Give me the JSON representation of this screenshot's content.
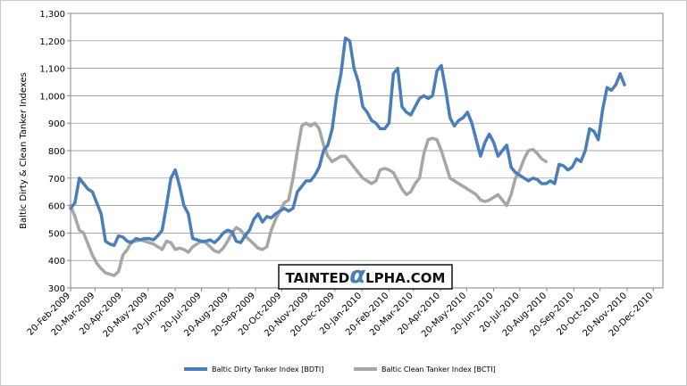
{
  "chart_data": {
    "type": "line",
    "ylabel": "Baltic Dirty & Clean Tanker Indexes",
    "xlabel": "",
    "ylim": [
      300,
      1300
    ],
    "yticks": [
      "300",
      "400",
      "500",
      "600",
      "700",
      "800",
      "900",
      "1,000",
      "1,100",
      "1,200",
      "1,300"
    ],
    "ytick_values": [
      300,
      400,
      500,
      600,
      700,
      800,
      900,
      1000,
      1100,
      1200,
      1300
    ],
    "xlim": [
      "2009-02-20",
      "2010-12-31"
    ],
    "xticks": [
      "20-Feb-2009",
      "20-Mar-2009",
      "20-Apr-2009",
      "20-May-2009",
      "20-Jun-2009",
      "20-Jul-2009",
      "20-Aug-2009",
      "20-Sep-2009",
      "20-Oct-2009",
      "20-Nov-2009",
      "20-Dec-2009",
      "20-Jan-2010",
      "20-Feb-2010",
      "20-Mar-2010",
      "20-Apr-2010",
      "20-May-2010",
      "20-Jun-2010",
      "20-Jul-2010",
      "20-Aug-2010",
      "20-Sep-2010",
      "20-Oct-2010",
      "20-Nov-2010",
      "20-Dec-2010"
    ],
    "xtick_dates": [
      "2009-02-20",
      "2009-03-20",
      "2009-04-20",
      "2009-05-20",
      "2009-06-20",
      "2009-07-20",
      "2009-08-20",
      "2009-09-20",
      "2009-10-20",
      "2009-11-20",
      "2009-12-20",
      "2010-01-20",
      "2010-02-20",
      "2010-03-20",
      "2010-04-20",
      "2010-05-20",
      "2010-06-20",
      "2010-07-20",
      "2010-08-20",
      "2010-09-20",
      "2010-10-20",
      "2010-11-20",
      "2010-12-20"
    ],
    "grid": true,
    "legend_position": "bottom",
    "series": [
      {
        "name": "Baltic Dirty Tanker Index [BDTI]",
        "color": "#4a7ebb",
        "points": [
          [
            "2009-02-20",
            590
          ],
          [
            "2009-02-25",
            610
          ],
          [
            "2009-03-02",
            700
          ],
          [
            "2009-03-07",
            680
          ],
          [
            "2009-03-12",
            660
          ],
          [
            "2009-03-17",
            650
          ],
          [
            "2009-03-22",
            610
          ],
          [
            "2009-03-27",
            570
          ],
          [
            "2009-04-01",
            470
          ],
          [
            "2009-04-06",
            460
          ],
          [
            "2009-04-11",
            455
          ],
          [
            "2009-04-16",
            490
          ],
          [
            "2009-04-21",
            485
          ],
          [
            "2009-04-26",
            470
          ],
          [
            "2009-05-01",
            465
          ],
          [
            "2009-05-06",
            480
          ],
          [
            "2009-05-11",
            475
          ],
          [
            "2009-05-16",
            480
          ],
          [
            "2009-05-21",
            480
          ],
          [
            "2009-05-26",
            475
          ],
          [
            "2009-05-31",
            490
          ],
          [
            "2009-06-05",
            510
          ],
          [
            "2009-06-10",
            600
          ],
          [
            "2009-06-15",
            700
          ],
          [
            "2009-06-20",
            730
          ],
          [
            "2009-06-25",
            670
          ],
          [
            "2009-06-30",
            600
          ],
          [
            "2009-07-05",
            570
          ],
          [
            "2009-07-10",
            480
          ],
          [
            "2009-07-15",
            475
          ],
          [
            "2009-07-20",
            470
          ],
          [
            "2009-07-25",
            470
          ],
          [
            "2009-07-30",
            475
          ],
          [
            "2009-08-04",
            465
          ],
          [
            "2009-08-09",
            480
          ],
          [
            "2009-08-14",
            500
          ],
          [
            "2009-08-19",
            510
          ],
          [
            "2009-08-24",
            505
          ],
          [
            "2009-08-29",
            470
          ],
          [
            "2009-09-03",
            465
          ],
          [
            "2009-09-08",
            490
          ],
          [
            "2009-09-13",
            510
          ],
          [
            "2009-09-18",
            550
          ],
          [
            "2009-09-23",
            570
          ],
          [
            "2009-09-28",
            540
          ],
          [
            "2009-10-03",
            560
          ],
          [
            "2009-10-08",
            555
          ],
          [
            "2009-10-13",
            570
          ],
          [
            "2009-10-18",
            580
          ],
          [
            "2009-10-23",
            590
          ],
          [
            "2009-10-28",
            580
          ],
          [
            "2009-11-02",
            590
          ],
          [
            "2009-11-07",
            650
          ],
          [
            "2009-11-12",
            670
          ],
          [
            "2009-11-17",
            690
          ],
          [
            "2009-11-22",
            690
          ],
          [
            "2009-11-27",
            710
          ],
          [
            "2009-12-02",
            740
          ],
          [
            "2009-12-07",
            800
          ],
          [
            "2009-12-12",
            820
          ],
          [
            "2009-12-17",
            880
          ],
          [
            "2009-12-22",
            1000
          ],
          [
            "2009-12-27",
            1080
          ],
          [
            "2010-01-01",
            1210
          ],
          [
            "2010-01-06",
            1200
          ],
          [
            "2010-01-11",
            1100
          ],
          [
            "2010-01-16",
            1050
          ],
          [
            "2010-01-21",
            960
          ],
          [
            "2010-01-26",
            940
          ],
          [
            "2010-01-31",
            910
          ],
          [
            "2010-02-05",
            900
          ],
          [
            "2010-02-10",
            880
          ],
          [
            "2010-02-15",
            880
          ],
          [
            "2010-02-20",
            900
          ],
          [
            "2010-02-25",
            1080
          ],
          [
            "2010-03-02",
            1100
          ],
          [
            "2010-03-07",
            960
          ],
          [
            "2010-03-12",
            940
          ],
          [
            "2010-03-17",
            930
          ],
          [
            "2010-03-22",
            960
          ],
          [
            "2010-03-27",
            990
          ],
          [
            "2010-04-01",
            1000
          ],
          [
            "2010-04-06",
            990
          ],
          [
            "2010-04-11",
            1000
          ],
          [
            "2010-04-16",
            1090
          ],
          [
            "2010-04-21",
            1110
          ],
          [
            "2010-04-26",
            1020
          ],
          [
            "2010-05-01",
            920
          ],
          [
            "2010-05-06",
            890
          ],
          [
            "2010-05-11",
            910
          ],
          [
            "2010-05-16",
            920
          ],
          [
            "2010-05-21",
            940
          ],
          [
            "2010-05-26",
            900
          ],
          [
            "2010-05-31",
            840
          ],
          [
            "2010-06-05",
            780
          ],
          [
            "2010-06-10",
            830
          ],
          [
            "2010-06-15",
            860
          ],
          [
            "2010-06-20",
            830
          ],
          [
            "2010-06-25",
            780
          ],
          [
            "2010-06-30",
            800
          ],
          [
            "2010-07-05",
            820
          ],
          [
            "2010-07-10",
            740
          ],
          [
            "2010-07-15",
            720
          ],
          [
            "2010-07-20",
            710
          ],
          [
            "2010-07-25",
            700
          ],
          [
            "2010-07-30",
            690
          ],
          [
            "2010-08-04",
            700
          ],
          [
            "2010-08-09",
            695
          ],
          [
            "2010-08-14",
            680
          ],
          [
            "2010-08-19",
            680
          ],
          [
            "2010-08-24",
            690
          ],
          [
            "2010-08-29",
            680
          ],
          [
            "2010-09-03",
            750
          ],
          [
            "2010-09-08",
            745
          ],
          [
            "2010-09-13",
            730
          ],
          [
            "2010-09-18",
            740
          ],
          [
            "2010-09-23",
            770
          ],
          [
            "2010-09-28",
            760
          ],
          [
            "2010-10-03",
            800
          ],
          [
            "2010-10-08",
            880
          ],
          [
            "2010-10-13",
            870
          ],
          [
            "2010-10-18",
            840
          ],
          [
            "2010-10-23",
            950
          ],
          [
            "2010-10-28",
            1030
          ],
          [
            "2010-11-02",
            1020
          ],
          [
            "2010-11-07",
            1040
          ],
          [
            "2010-11-12",
            1080
          ],
          [
            "2010-11-17",
            1040
          ]
        ]
      },
      {
        "name": "Baltic Clean Tanker Index [BCTI]",
        "color": "#a6a6a6",
        "points": [
          [
            "2009-02-20",
            600
          ],
          [
            "2009-02-25",
            560
          ],
          [
            "2009-03-02",
            510
          ],
          [
            "2009-03-07",
            500
          ],
          [
            "2009-03-12",
            460
          ],
          [
            "2009-03-17",
            420
          ],
          [
            "2009-03-22",
            390
          ],
          [
            "2009-03-27",
            370
          ],
          [
            "2009-04-01",
            355
          ],
          [
            "2009-04-06",
            350
          ],
          [
            "2009-04-11",
            345
          ],
          [
            "2009-04-16",
            360
          ],
          [
            "2009-04-21",
            420
          ],
          [
            "2009-04-26",
            440
          ],
          [
            "2009-05-01",
            470
          ],
          [
            "2009-05-06",
            470
          ],
          [
            "2009-05-11",
            475
          ],
          [
            "2009-05-16",
            470
          ],
          [
            "2009-05-21",
            465
          ],
          [
            "2009-05-26",
            460
          ],
          [
            "2009-05-31",
            450
          ],
          [
            "2009-06-05",
            440
          ],
          [
            "2009-06-10",
            470
          ],
          [
            "2009-06-15",
            465
          ],
          [
            "2009-06-20",
            440
          ],
          [
            "2009-06-25",
            445
          ],
          [
            "2009-06-30",
            440
          ],
          [
            "2009-07-05",
            430
          ],
          [
            "2009-07-10",
            450
          ],
          [
            "2009-07-15",
            460
          ],
          [
            "2009-07-20",
            470
          ],
          [
            "2009-07-25",
            465
          ],
          [
            "2009-07-30",
            450
          ],
          [
            "2009-08-04",
            435
          ],
          [
            "2009-08-09",
            430
          ],
          [
            "2009-08-14",
            445
          ],
          [
            "2009-08-19",
            470
          ],
          [
            "2009-08-24",
            500
          ],
          [
            "2009-08-29",
            520
          ],
          [
            "2009-09-03",
            510
          ],
          [
            "2009-09-08",
            490
          ],
          [
            "2009-09-13",
            475
          ],
          [
            "2009-09-18",
            460
          ],
          [
            "2009-09-23",
            445
          ],
          [
            "2009-09-28",
            440
          ],
          [
            "2009-10-03",
            450
          ],
          [
            "2009-10-08",
            510
          ],
          [
            "2009-10-13",
            550
          ],
          [
            "2009-10-18",
            580
          ],
          [
            "2009-10-23",
            610
          ],
          [
            "2009-10-28",
            620
          ],
          [
            "2009-11-02",
            700
          ],
          [
            "2009-11-07",
            800
          ],
          [
            "2009-11-12",
            890
          ],
          [
            "2009-11-17",
            900
          ],
          [
            "2009-11-22",
            890
          ],
          [
            "2009-11-27",
            900
          ],
          [
            "2009-12-02",
            880
          ],
          [
            "2009-12-07",
            820
          ],
          [
            "2009-12-12",
            780
          ],
          [
            "2009-12-17",
            760
          ],
          [
            "2009-12-22",
            770
          ],
          [
            "2009-12-27",
            780
          ],
          [
            "2010-01-01",
            780
          ],
          [
            "2010-01-06",
            760
          ],
          [
            "2010-01-11",
            740
          ],
          [
            "2010-01-16",
            720
          ],
          [
            "2010-01-21",
            700
          ],
          [
            "2010-01-26",
            690
          ],
          [
            "2010-01-31",
            680
          ],
          [
            "2010-02-05",
            690
          ],
          [
            "2010-02-10",
            730
          ],
          [
            "2010-02-15",
            735
          ],
          [
            "2010-02-20",
            730
          ],
          [
            "2010-02-25",
            720
          ],
          [
            "2010-03-02",
            690
          ],
          [
            "2010-03-07",
            660
          ],
          [
            "2010-03-12",
            640
          ],
          [
            "2010-03-17",
            650
          ],
          [
            "2010-03-22",
            680
          ],
          [
            "2010-03-27",
            700
          ],
          [
            "2010-04-01",
            790
          ],
          [
            "2010-04-06",
            840
          ],
          [
            "2010-04-11",
            845
          ],
          [
            "2010-04-16",
            840
          ],
          [
            "2010-04-21",
            800
          ],
          [
            "2010-04-26",
            750
          ],
          [
            "2010-05-01",
            700
          ],
          [
            "2010-05-06",
            690
          ],
          [
            "2010-05-11",
            680
          ],
          [
            "2010-05-16",
            670
          ],
          [
            "2010-05-21",
            660
          ],
          [
            "2010-05-26",
            650
          ],
          [
            "2010-05-31",
            640
          ],
          [
            "2010-06-05",
            620
          ],
          [
            "2010-06-10",
            615
          ],
          [
            "2010-06-15",
            620
          ],
          [
            "2010-06-20",
            630
          ],
          [
            "2010-06-25",
            640
          ],
          [
            "2010-06-30",
            620
          ],
          [
            "2010-07-05",
            600
          ],
          [
            "2010-07-10",
            640
          ],
          [
            "2010-07-15",
            700
          ],
          [
            "2010-07-20",
            730
          ],
          [
            "2010-07-25",
            770
          ],
          [
            "2010-07-30",
            800
          ],
          [
            "2010-08-04",
            805
          ],
          [
            "2010-08-09",
            790
          ],
          [
            "2010-08-14",
            770
          ],
          [
            "2010-08-19",
            760
          ]
        ]
      }
    ]
  },
  "watermark": {
    "prefix": "TAINTED",
    "glyph": "α",
    "suffix": "LPHA.COM"
  }
}
